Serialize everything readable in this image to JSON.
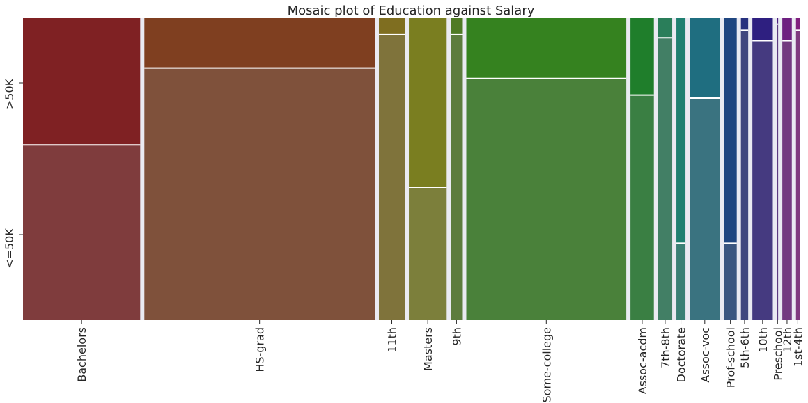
{
  "chart_data": {
    "type": "mosaic",
    "title": "Mosaic plot of Education against Salary",
    "y_categories": [
      ">50K",
      "<=50K"
    ],
    "categories": [
      {
        "label": "Bachelors",
        "share": 0.1641,
        "gt50k_fraction": 0.42,
        "color": "#7f2123"
      },
      {
        "label": "HS-grad",
        "share": 0.3225,
        "gt50k_fraction": 0.165,
        "color": "#7f3f20"
      },
      {
        "label": "11th",
        "share": 0.0361,
        "gt50k_fraction": 0.055,
        "color": "#7f6e20"
      },
      {
        "label": "Masters",
        "share": 0.0529,
        "gt50k_fraction": 0.56,
        "color": "#7a7e20"
      },
      {
        "label": "9th",
        "share": 0.0158,
        "gt50k_fraction": 0.055,
        "color": "#4f7a25"
      },
      {
        "label": "Some-college",
        "share": 0.2239,
        "gt50k_fraction": 0.2,
        "color": "#35821f"
      },
      {
        "label": "Assoc-acdm",
        "share": 0.0328,
        "gt50k_fraction": 0.255,
        "color": "#1f7e2b"
      },
      {
        "label": "7th-8th",
        "share": 0.0198,
        "gt50k_fraction": 0.065,
        "color": "#2a7e5a"
      },
      {
        "label": "Doctorate",
        "share": 0.0127,
        "gt50k_fraction": 0.745,
        "color": "#1f8071"
      },
      {
        "label": "Assoc-voc",
        "share": 0.0424,
        "gt50k_fraction": 0.265,
        "color": "#1f6e80"
      },
      {
        "label": "Prof-school",
        "share": 0.0177,
        "gt50k_fraction": 0.745,
        "color": "#1f4680"
      },
      {
        "label": "5th-6th",
        "share": 0.0102,
        "gt50k_fraction": 0.04,
        "color": "#27317f"
      },
      {
        "label": "10th",
        "share": 0.0286,
        "gt50k_fraction": 0.075,
        "color": "#2e1f80"
      },
      {
        "label": "Preschool",
        "share": 0.0016,
        "gt50k_fraction": 0.02,
        "color": "#4e1f80"
      },
      {
        "label": "12th",
        "share": 0.0133,
        "gt50k_fraction": 0.075,
        "color": "#6e1f80"
      },
      {
        "label": "1st-4th",
        "share": 0.0051,
        "gt50k_fraction": 0.04,
        "color": "#801f7e"
      }
    ]
  }
}
